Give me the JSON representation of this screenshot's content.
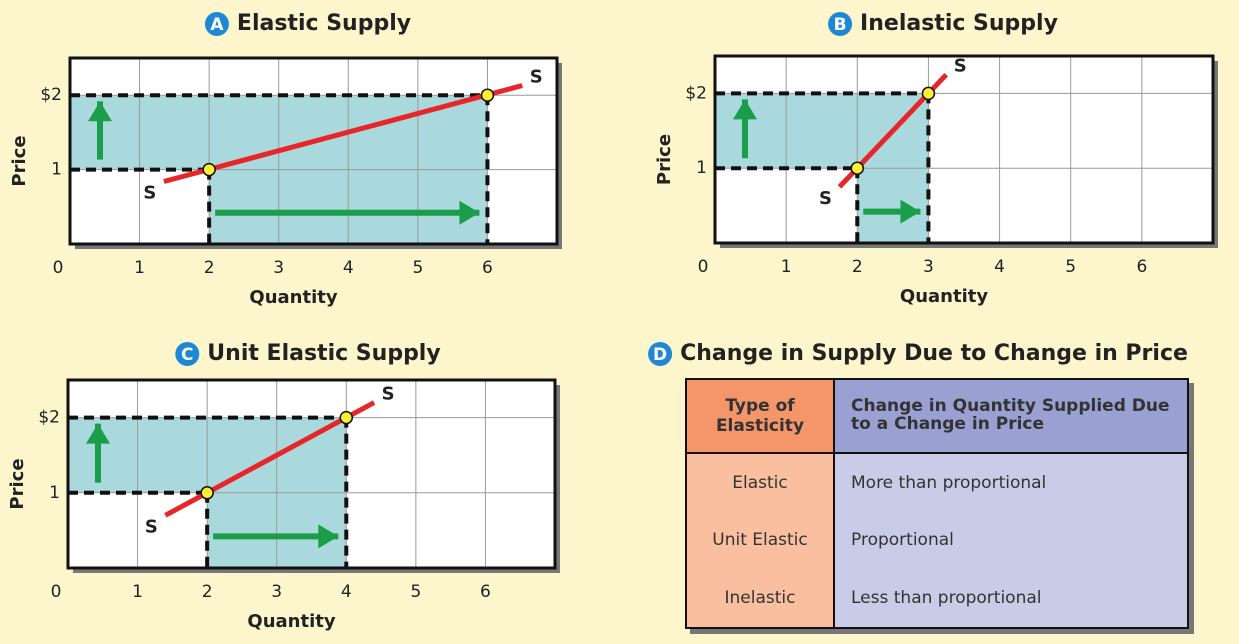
{
  "chart_data": [
    {
      "type": "line",
      "badge": "A",
      "title": "Elastic Supply",
      "xlabel": "Quantity",
      "ylabel": "Price",
      "xlim": [
        0,
        7
      ],
      "ylim": [
        0,
        2.5
      ],
      "xticks": [
        0,
        1,
        2,
        3,
        4,
        5,
        6
      ],
      "yticks": [
        1,
        {
          "value": 2,
          "label": "$2"
        }
      ],
      "grid": true,
      "series": [
        {
          "name": "S",
          "color": "#e8262a",
          "x": [
            1.35,
            6.5
          ],
          "values": [
            0.84,
            2.13
          ]
        }
      ],
      "points": {
        "x": [
          2,
          6
        ],
        "values": [
          1,
          2
        ],
        "color": "#ffee33"
      }
    },
    {
      "type": "line",
      "badge": "B",
      "title": "Inelastic Supply",
      "xlabel": "Quantity",
      "ylabel": "Price",
      "xlim": [
        0,
        7
      ],
      "ylim": [
        0,
        2.5
      ],
      "xticks": [
        0,
        1,
        2,
        3,
        4,
        5,
        6
      ],
      "yticks": [
        1,
        {
          "value": 2,
          "label": "$2"
        }
      ],
      "grid": true,
      "series": [
        {
          "name": "S",
          "color": "#e8262a",
          "x": [
            1.75,
            3.25
          ],
          "values": [
            0.75,
            2.25
          ]
        }
      ],
      "points": {
        "x": [
          2,
          3
        ],
        "values": [
          1,
          2
        ],
        "color": "#ffee33"
      }
    },
    {
      "type": "line",
      "badge": "C",
      "title": "Unit Elastic Supply",
      "xlabel": "Quantity",
      "ylabel": "Price",
      "xlim": [
        0,
        7
      ],
      "ylim": [
        0,
        2.5
      ],
      "xticks": [
        0,
        1,
        2,
        3,
        4,
        5,
        6
      ],
      "yticks": [
        1,
        {
          "value": 2,
          "label": "$2"
        }
      ],
      "grid": true,
      "series": [
        {
          "name": "S",
          "color": "#e8262a",
          "x": [
            1.4,
            4.4
          ],
          "values": [
            0.7,
            2.2
          ]
        }
      ],
      "points": {
        "x": [
          2,
          4
        ],
        "values": [
          1,
          2
        ],
        "color": "#ffee33"
      }
    }
  ],
  "table": {
    "badge": "D",
    "title": "Change in Supply Due to Change in Price",
    "header": [
      "Type of Elasticity",
      "Change in Quantity Supplied Due to a Change in Price"
    ],
    "rows": [
      [
        "Elastic",
        "More than proportional"
      ],
      [
        "Unit Elastic",
        "Proportional"
      ],
      [
        "Inelastic",
        "Less than proportional"
      ]
    ]
  }
}
